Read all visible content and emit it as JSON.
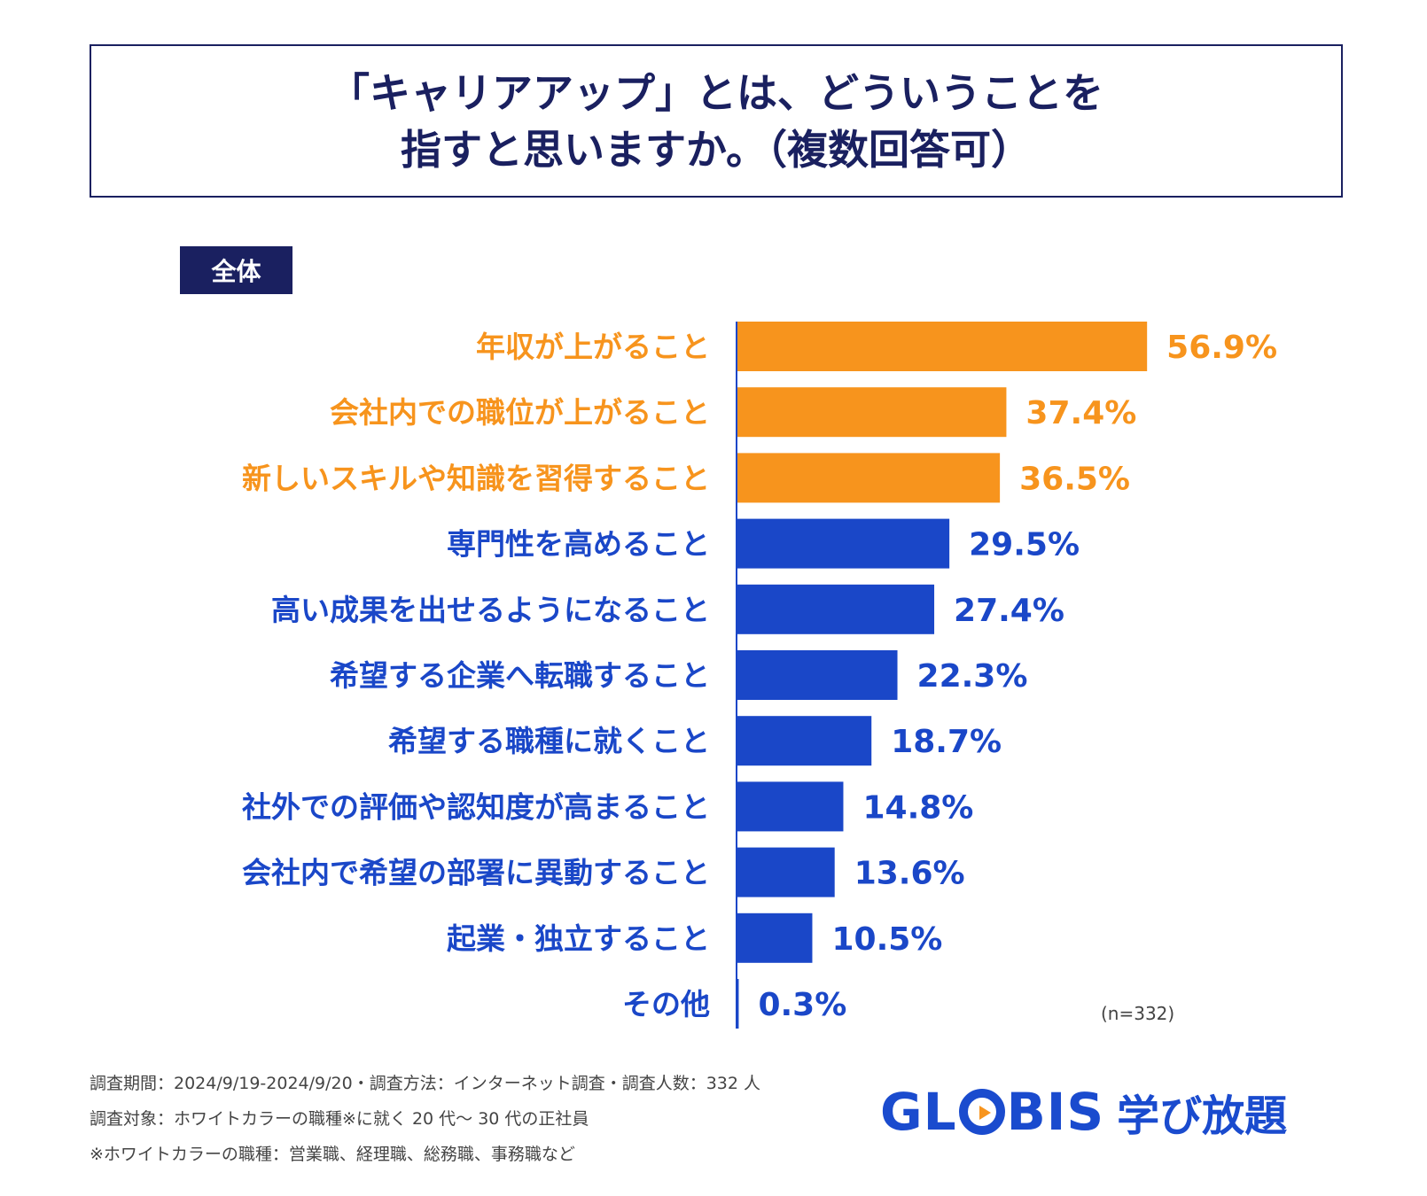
{
  "title": {
    "line1": "「キャリアアップ」とは、どういうことを",
    "line2": "指すと思いますか。（複数回答可）"
  },
  "segment_label": "全体",
  "colors": {
    "highlight": "#f7941d",
    "normal": "#1a47c8",
    "navy": "#1a2060"
  },
  "chart_data": {
    "type": "bar",
    "orientation": "horizontal",
    "title": "「キャリアアップ」とは、どういうことを指すと思いますか。（複数回答可）",
    "categories": [
      "年収が上がること",
      "会社内での職位が上がること",
      "新しいスキルや知識を習得すること",
      "専門性を高めること",
      "高い成果を出せるようになること",
      "希望する企業へ転職すること",
      "希望する職種に就くこと",
      "社外での評価や認知度が高まること",
      "会社内で希望の部署に異動すること",
      "起業・独立すること",
      "その他"
    ],
    "values": [
      56.9,
      37.4,
      36.5,
      29.5,
      27.4,
      22.3,
      18.7,
      14.8,
      13.6,
      10.5,
      0.3
    ],
    "value_labels": [
      "56.9%",
      "37.4%",
      "36.5%",
      "29.5%",
      "27.4%",
      "22.3%",
      "18.7%",
      "14.8%",
      "13.6%",
      "10.5%",
      "0.3%"
    ],
    "highlighted": [
      true,
      true,
      true,
      false,
      false,
      false,
      false,
      false,
      false,
      false,
      false
    ],
    "unit": "%",
    "xlim": [
      0,
      60
    ]
  },
  "sample_note": "(n=332)",
  "footnotes": [
    "調査期間：2024/9/19-2024/9/20・調査方法：インターネット調査・調査人数：332 人",
    "調査対象：ホワイトカラーの職種※に就く 20 代～ 30 代の正社員",
    "※ホワイトカラーの職種：営業職、経理職、総務職、事務職など"
  ],
  "logo": {
    "brand_left": "GL",
    "brand_right": "BIS",
    "sub": "学び放題"
  }
}
